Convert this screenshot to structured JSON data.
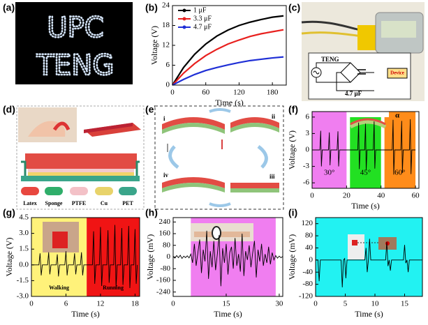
{
  "panel_a": {
    "label": "(a)",
    "texts": [
      "UPC",
      "TENG"
    ]
  },
  "panel_c": {
    "label": "(c)",
    "circuit": [
      "TENG",
      "4.7 μF",
      "Device"
    ]
  },
  "panel_d": {
    "label": "(d)",
    "materials": [
      "Latex",
      "Sponge",
      "PTFE",
      "Cu",
      "PET"
    ]
  },
  "panel_e": {
    "label": "(e)",
    "steps": [
      "i",
      "ii",
      "iii",
      "iv"
    ]
  },
  "chart_data": [
    {
      "type": "line",
      "label": "(b)",
      "x_label": "Time (s)",
      "y_label": "Voltage (V)",
      "legend": "upper left",
      "x": [
        0,
        20,
        40,
        60,
        80,
        100,
        120,
        140,
        160,
        180,
        200
      ],
      "series": [
        {
          "name": "1 μF",
          "color": "#000000",
          "values": [
            0,
            5.3,
            9.3,
            12.4,
            14.8,
            16.6,
            18.0,
            19.0,
            19.8,
            20.5,
            20.9
          ]
        },
        {
          "name": "3.3 μF",
          "color": "#e8201e",
          "values": [
            0,
            3.6,
            6.5,
            8.9,
            10.8,
            12.4,
            13.6,
            14.7,
            15.5,
            16.1,
            16.7
          ]
        },
        {
          "name": "4.7 μF",
          "color": "#1f2fd6",
          "values": [
            0,
            1.7,
            3.2,
            4.4,
            5.3,
            6.1,
            6.8,
            7.4,
            7.8,
            8.2,
            8.5
          ]
        }
      ],
      "xlim": [
        0,
        205
      ],
      "xticks": [
        0,
        60,
        120,
        180
      ],
      "ylim": [
        0,
        24
      ],
      "yticks": [
        0,
        6,
        12,
        18,
        24
      ]
    },
    {
      "type": "line",
      "label": "(f)",
      "x_label": "Time (s)",
      "y_label": "Voltage (V)",
      "annotation": "α",
      "regions": [
        {
          "x0": 0,
          "x1": 20,
          "color": "#f07ef0",
          "label": "30°"
        },
        {
          "x0": 22,
          "x1": 40,
          "color": "#22e022",
          "label": "45°"
        },
        {
          "x0": 42,
          "x1": 60,
          "color": "#ff8c1a",
          "label": "60°"
        }
      ],
      "x": [
        0,
        4.5,
        5,
        5.4,
        5.9,
        9.5,
        10,
        10.4,
        10.9,
        14.5,
        15,
        15.4,
        15.9,
        26.5,
        27,
        27.4,
        27.9,
        30.5,
        31,
        31.4,
        31.9,
        35.5,
        36,
        36.4,
        36.9,
        46.5,
        47,
        47.4,
        47.9,
        51.5,
        52,
        52.4,
        52.9,
        56.5,
        57,
        57.4,
        57.9,
        60
      ],
      "series": [
        {
          "color": "#000000",
          "values": [
            0,
            0,
            3.5,
            -3,
            0,
            0,
            3.2,
            -2.8,
            0,
            0,
            3.4,
            -3,
            0,
            0,
            5,
            -3.5,
            0,
            0,
            4.8,
            -3.6,
            0,
            0,
            5.2,
            -3.4,
            0,
            0,
            5.5,
            -4.5,
            0,
            0,
            5.3,
            -4.2,
            0,
            0,
            5.6,
            -4.4,
            0,
            0
          ]
        }
      ],
      "xlim": [
        0,
        62
      ],
      "xticks": [
        0,
        20,
        40,
        60
      ],
      "ylim": [
        -7,
        7
      ],
      "yticks": [
        6,
        3,
        0,
        -3,
        -6
      ]
    },
    {
      "type": "line",
      "label": "(g)",
      "x_label": "Time (s)",
      "y_label": "Voltage (V)",
      "regions": [
        {
          "x0": 0,
          "x1": 9.6,
          "color": "#fff27a",
          "label": "Walking"
        },
        {
          "x0": 9.6,
          "x1": 18.8,
          "color": "#f01414",
          "label": "Running"
        }
      ],
      "x": [
        0,
        1.3,
        1.5,
        1.7,
        1.9,
        2.8,
        3,
        3.2,
        3.4,
        4.3,
        4.5,
        4.7,
        4.9,
        5.8,
        6,
        6.2,
        6.4,
        7.3,
        7.5,
        7.7,
        7.9,
        8.5,
        8.7,
        8.9,
        9.1,
        10.6,
        10.8,
        11,
        11.2,
        11.8,
        12,
        12.2,
        12.4,
        13.1,
        13.3,
        13.5,
        13.7,
        14.3,
        14.5,
        14.7,
        14.9,
        15.5,
        15.7,
        15.9,
        16.1,
        16.7,
        16.9,
        17.1,
        17.3,
        17.8,
        18,
        18.2,
        18.4
      ],
      "series": [
        {
          "color": "#000000",
          "values": [
            0,
            0,
            1.1,
            -1.0,
            0,
            0,
            1.2,
            -0.9,
            0,
            0,
            1.0,
            -1.1,
            0,
            0,
            1.3,
            -1.0,
            0,
            0,
            1.1,
            -0.9,
            0,
            0,
            1.2,
            -1.0,
            0,
            0,
            3.2,
            -1.8,
            0,
            0,
            3.6,
            -2.0,
            0,
            0,
            3.3,
            -1.7,
            0,
            0,
            3.8,
            -2.1,
            0,
            0,
            3.5,
            -1.9,
            0,
            0,
            3.7,
            -2.2,
            0,
            0,
            3.4,
            -1.8,
            0
          ]
        }
      ],
      "xlim": [
        0,
        18.8
      ],
      "xticks": [
        0,
        6,
        12,
        18
      ],
      "ylim": [
        -3,
        4.5
      ],
      "yticks": [
        {
          "value": -3,
          "label": "-3.0"
        },
        -1.5,
        {
          "value": 0,
          "label": "0.0"
        },
        1.5,
        {
          "value": 3,
          "label": "3.0"
        },
        4.5
      ]
    },
    {
      "type": "line",
      "label": "(h)",
      "x_label": "Time (s)",
      "y_label": "Voltage (mV)",
      "regions": [
        {
          "x0": 5,
          "x1": 29,
          "color": "#f07ef0"
        }
      ],
      "x": [
        0,
        0.5,
        1,
        1.5,
        2,
        2.5,
        3,
        3.5,
        4,
        4.5,
        5,
        5.5,
        6,
        6.5,
        7,
        7.5,
        8,
        8.5,
        9,
        9.5,
        10,
        10.5,
        11,
        11.5,
        12,
        12.5,
        13,
        13.5,
        14,
        14.5,
        15,
        15.5,
        16,
        16.5,
        17,
        17.5,
        18,
        18.5,
        19,
        19.5,
        20,
        20.5,
        21,
        21.5,
        22,
        22.5,
        23,
        23.5,
        24,
        24.5,
        25,
        25.5,
        26,
        26.5,
        27,
        27.5,
        28,
        28.5,
        29,
        29.5,
        30,
        30.5,
        31
      ],
      "series": [
        {
          "color": "#000000",
          "values": [
            5,
            -8,
            10,
            -5,
            12,
            -10,
            6,
            -4,
            8,
            -6,
            20,
            -40,
            90,
            -60,
            30,
            120,
            -110,
            50,
            -30,
            180,
            -150,
            40,
            -70,
            110,
            -90,
            20,
            150,
            -200,
            60,
            -40,
            90,
            -120,
            30,
            70,
            -80,
            130,
            -60,
            20,
            -100,
            160,
            -130,
            40,
            -20,
            80,
            -70,
            30,
            110,
            -140,
            50,
            -30,
            90,
            -60,
            20,
            -40,
            70,
            -50,
            30,
            -20,
            10,
            -8,
            6,
            -5,
            4
          ]
        }
      ],
      "xlim": [
        0,
        31
      ],
      "xticks": [
        0,
        15,
        30
      ],
      "ylim": [
        -270,
        270
      ],
      "yticks": [
        -240,
        -160,
        -80,
        0,
        80,
        160,
        240
      ]
    },
    {
      "type": "line",
      "label": "(i)",
      "x_label": "Time (s)",
      "y_label": "Voltage (mV)",
      "regions": [
        {
          "x0": 0,
          "x1": 18,
          "color": "#22f2f2"
        }
      ],
      "x": [
        0,
        0.4,
        0.6,
        0.8,
        4.3,
        4.5,
        4.7,
        4.9,
        5.1,
        5.3,
        8.3,
        8.5,
        8.7,
        8.9,
        9.1,
        9.3,
        11.8,
        12,
        12.2,
        12.4,
        12.6,
        12.8,
        14.8,
        15,
        15.2,
        15.4,
        15.6,
        15.8,
        18
      ],
      "series": [
        {
          "color": "#000000",
          "values": [
            0,
            0,
            -70,
            0,
            0,
            -90,
            0,
            5,
            -60,
            0,
            0,
            40,
            -40,
            0,
            70,
            0,
            0,
            60,
            -20,
            0,
            -35,
            0,
            0,
            50,
            -10,
            0,
            -40,
            0,
            0
          ]
        }
      ],
      "xlim": [
        0,
        18
      ],
      "xticks": [
        0,
        5,
        10,
        15
      ],
      "ylim": [
        -120,
        140
      ],
      "yticks": [
        -120,
        -80,
        -40,
        0,
        40,
        80,
        120
      ]
    }
  ]
}
